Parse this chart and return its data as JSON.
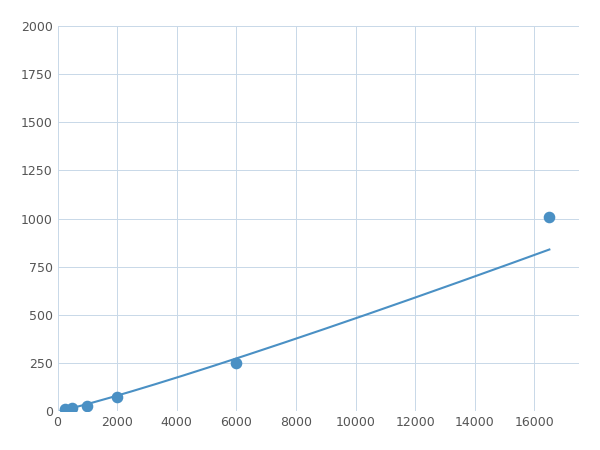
{
  "x": [
    250,
    500,
    1000,
    2000,
    6000,
    16500
  ],
  "y": [
    10,
    18,
    30,
    75,
    250,
    1010
  ],
  "line_color": "#4a90c4",
  "marker_color": "#4a90c4",
  "marker_size": 6,
  "xlim": [
    0,
    17500
  ],
  "ylim": [
    0,
    2000
  ],
  "xticks": [
    0,
    2000,
    4000,
    6000,
    8000,
    10000,
    12000,
    14000,
    16000
  ],
  "yticks": [
    0,
    250,
    500,
    750,
    1000,
    1250,
    1500,
    1750,
    2000
  ],
  "grid_color": "#c8d8e8",
  "background_color": "#ffffff",
  "line_width": 1.5
}
